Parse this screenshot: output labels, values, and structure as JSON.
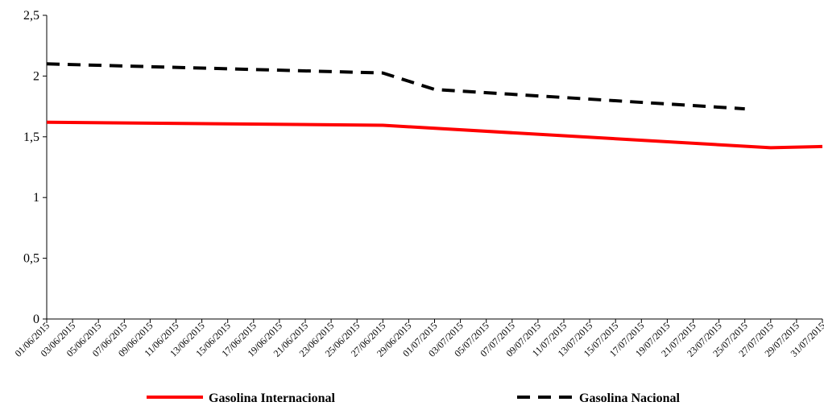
{
  "chart_data": {
    "type": "line",
    "title": "",
    "xlabel": "",
    "ylabel": "",
    "ylim": [
      0,
      2.5
    ],
    "yticks": [
      "0",
      "0,5",
      "1",
      "1,5",
      "2",
      "2,5"
    ],
    "ytick_values": [
      0,
      0.5,
      1,
      1.5,
      2,
      2.5
    ],
    "grid": false,
    "legend_position": "bottom",
    "x_tick_labels": [
      "01/06/2015",
      "03/06/2015",
      "05/06/2015",
      "07/06/2015",
      "09/06/2015",
      "11/06/2015",
      "13/06/2015",
      "15/06/2015",
      "17/06/2015",
      "19/06/2015",
      "21/06/2015",
      "23/06/2015",
      "25/06/2015",
      "27/06/2015",
      "29/06/2015",
      "01/07/2015",
      "03/07/2015",
      "05/07/2015",
      "07/07/2015",
      "09/07/2015",
      "11/07/2015",
      "13/07/2015",
      "15/07/2015",
      "17/07/2015",
      "19/07/2015",
      "21/07/2015",
      "23/07/2015",
      "25/07/2015",
      "27/07/2015",
      "29/07/2015",
      "31/07/2015"
    ],
    "series": [
      {
        "name": "Gasolina Internacional",
        "color": "#ff0000",
        "style": "solid",
        "x": [
          "01/06/2015",
          "27/06/2015",
          "27/07/2015",
          "31/07/2015"
        ],
        "values": [
          1.62,
          1.595,
          1.41,
          1.42
        ]
      },
      {
        "name": "Gasolina Nacional",
        "color": "#000000",
        "style": "dashed",
        "x": [
          "01/06/2015",
          "27/06/2015",
          "01/07/2015",
          "25/07/2015"
        ],
        "values": [
          2.1,
          2.025,
          1.89,
          1.73
        ]
      }
    ]
  }
}
